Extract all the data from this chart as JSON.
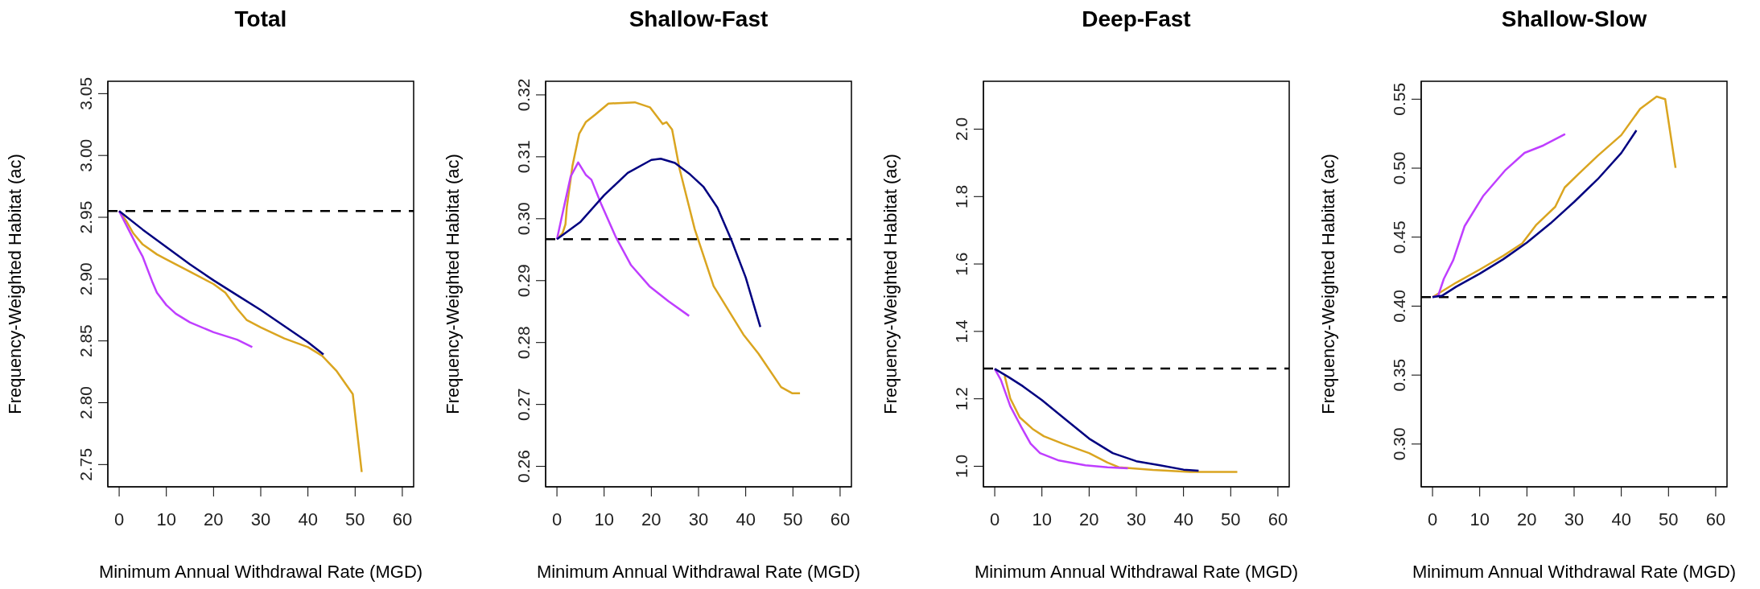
{
  "chart_data": [
    {
      "type": "line",
      "title": "Total",
      "xlabel": "Minimum Annual Withdrawal Rate (MGD)",
      "ylabel": "Frequency-Weighted Habitat (ac)",
      "xlim": [
        -2.4,
        62.4
      ],
      "xticks": [
        0,
        10,
        20,
        30,
        40,
        50,
        60
      ],
      "ylim": [
        2.732,
        3.06
      ],
      "yticks": [
        2.75,
        {
          "value": 2.8,
          "label": "2.80"
        },
        2.85,
        {
          "value": 2.9,
          "label": "2.90"
        },
        2.95,
        {
          "value": 3,
          "label": "3.00"
        },
        3.05
      ],
      "ref_lines": [
        {
          "axis": "y",
          "value": 2.955,
          "color": "#000000",
          "line_style": "dashed"
        }
      ],
      "series": [
        {
          "color": "#daa520",
          "x": [
            0,
            1.5,
            3,
            5,
            8,
            10,
            15,
            20,
            22.5,
            25,
            27,
            30,
            35,
            40,
            43,
            46,
            49.5,
            51.4
          ],
          "values": [
            2.955,
            2.947,
            2.937,
            2.928,
            2.92,
            2.916,
            2.906,
            2.896,
            2.889,
            2.876,
            2.867,
            2.861,
            2.852,
            2.845,
            2.838,
            2.826,
            2.807,
            2.744
          ]
        },
        {
          "color": "#bf3eff",
          "x": [
            0,
            2,
            4,
            5,
            7,
            8,
            10,
            12,
            15,
            20,
            25,
            28.2
          ],
          "values": [
            2.955,
            2.94,
            2.925,
            2.918,
            2.898,
            2.889,
            2.879,
            2.872,
            2.865,
            2.857,
            2.851,
            2.845
          ]
        },
        {
          "color": "#000080",
          "x": [
            0,
            5,
            10,
            15,
            20,
            25,
            30,
            35,
            40,
            43.3
          ],
          "values": [
            2.955,
            2.94,
            2.926,
            2.912,
            2.899,
            2.887,
            2.875,
            2.862,
            2.849,
            2.839
          ]
        }
      ]
    },
    {
      "type": "line",
      "title": "Shallow-Fast",
      "xlabel": "Minimum Annual Withdrawal Rate (MGD)",
      "ylabel": "Frequency-Weighted Habitat (ac)",
      "xlim": [
        -2.4,
        62.4
      ],
      "xticks": [
        0,
        10,
        20,
        30,
        40,
        50,
        60
      ],
      "ylim": [
        0.2567,
        0.3222
      ],
      "yticks": [
        0.26,
        0.27,
        0.28,
        0.29,
        {
          "value": 0.3,
          "label": "0.30"
        },
        0.31,
        0.32
      ],
      "ref_lines": [
        {
          "axis": "y",
          "value": 0.2967,
          "color": "#000000",
          "line_style": "dashed"
        }
      ],
      "series": [
        {
          "color": "#daa520",
          "x": [
            0,
            1.2,
            1.8,
            2.1,
            3.3,
            4.7,
            6.1,
            8.1,
            10.9,
            16.5,
            19.7,
            22.4,
            23.2,
            24.4,
            26,
            29.2,
            33.2,
            39.5,
            42.7,
            47.5,
            49.9,
            51.5
          ],
          "values": [
            0.2967,
            0.2977,
            0.2991,
            0.3019,
            0.3086,
            0.3137,
            0.3156,
            0.3168,
            0.3186,
            0.3188,
            0.318,
            0.3153,
            0.3156,
            0.3144,
            0.308,
            0.2983,
            0.2891,
            0.2813,
            0.2782,
            0.2728,
            0.2718,
            0.2718
          ]
        },
        {
          "color": "#bf3eff",
          "x": [
            0,
            1.4,
            2.9,
            4.5,
            6.1,
            7.3,
            9.3,
            12.5,
            15.7,
            19.6,
            23.6,
            28
          ],
          "values": [
            0.2967,
            0.3016,
            0.3068,
            0.3091,
            0.3071,
            0.3063,
            0.3025,
            0.297,
            0.2925,
            0.2891,
            0.2867,
            0.2843
          ]
        },
        {
          "color": "#000080",
          "x": [
            0,
            5,
            10,
            15,
            20,
            22,
            25,
            28,
            31,
            34,
            37,
            40,
            43.1
          ],
          "values": [
            0.2967,
            0.2995,
            0.3038,
            0.3074,
            0.3095,
            0.3097,
            0.309,
            0.3073,
            0.3052,
            0.3018,
            0.2965,
            0.2905,
            0.2825
          ]
        }
      ]
    },
    {
      "type": "line",
      "title": "Deep-Fast",
      "xlabel": "Minimum Annual Withdrawal Rate (MGD)",
      "ylabel": "Frequency-Weighted Habitat (ac)",
      "xlim": [
        -2.4,
        62.4
      ],
      "xticks": [
        0,
        10,
        20,
        30,
        40,
        50,
        60
      ],
      "ylim": [
        0.939,
        2.142
      ],
      "yticks": [
        {
          "value": 1,
          "label": "1.0"
        },
        1.2,
        1.4,
        1.6,
        1.8,
        {
          "value": 2,
          "label": "2.0"
        }
      ],
      "ref_lines": [
        {
          "axis": "y",
          "value": 1.29,
          "color": "#000000",
          "line_style": "dashed"
        }
      ],
      "series": [
        {
          "color": "#daa520",
          "x": [
            2.1,
            3.3,
            5.3,
            8,
            10.4,
            14.4,
            20,
            23.9,
            26.3,
            33.5,
            41.4,
            51.4
          ],
          "values": [
            1.268,
            1.201,
            1.145,
            1.111,
            1.089,
            1.067,
            1.039,
            1.011,
            0.997,
            0.989,
            0.983,
            0.983
          ]
        },
        {
          "color": "#bf3eff",
          "x": [
            0,
            1.3,
            3.3,
            5.6,
            7.6,
            9.6,
            13.6,
            19.2,
            23.9,
            28.2
          ],
          "values": [
            1.289,
            1.256,
            1.178,
            1.117,
            1.067,
            1.039,
            1.017,
            1.003,
            0.997,
            0.994
          ]
        },
        {
          "color": "#000080",
          "x": [
            0,
            3,
            6,
            10,
            15,
            20,
            25,
            30,
            35,
            40,
            43.2
          ],
          "values": [
            1.289,
            1.264,
            1.237,
            1.196,
            1.139,
            1.082,
            1.039,
            1.015,
            1.003,
            0.99,
            0.987
          ]
        }
      ]
    },
    {
      "type": "line",
      "title": "Shallow-Slow",
      "xlabel": "Minimum Annual Withdrawal Rate (MGD)",
      "ylabel": "Frequency-Weighted Habitat (ac)",
      "xlim": [
        -2.4,
        62.4
      ],
      "xticks": [
        0,
        10,
        20,
        30,
        40,
        50,
        60
      ],
      "ylim": [
        0.269,
        0.563
      ],
      "yticks": [
        {
          "value": 0.3,
          "label": "0.30"
        },
        0.35,
        {
          "value": 0.4,
          "label": "0.40"
        },
        0.45,
        {
          "value": 0.5,
          "label": "0.50"
        },
        0.55
      ],
      "ref_lines": [
        {
          "axis": "y",
          "value": 0.4065,
          "color": "#000000",
          "line_style": "dashed"
        }
      ],
      "series": [
        {
          "color": "#daa520",
          "x": [
            0,
            5,
            10,
            15,
            19,
            22,
            26,
            28,
            31,
            35,
            40,
            44,
            47.5,
            49.3,
            51.5
          ],
          "values": [
            0.4065,
            0.417,
            0.4265,
            0.4365,
            0.4455,
            0.459,
            0.472,
            0.486,
            0.496,
            0.509,
            0.524,
            0.543,
            0.5519,
            0.55,
            0.5002
          ]
        },
        {
          "color": "#bf3eff",
          "x": [
            0,
            1.2,
            2.4,
            4.4,
            6.8,
            10.7,
            15.5,
            19.5,
            23.5,
            28.1
          ],
          "values": [
            0.4065,
            0.4076,
            0.4198,
            0.4334,
            0.458,
            0.4797,
            0.4988,
            0.5111,
            0.5165,
            0.5247
          ]
        },
        {
          "color": "#000080",
          "x": [
            0,
            2,
            5,
            10,
            15,
            20,
            25,
            30,
            35,
            40,
            43.2
          ],
          "values": [
            0.4065,
            0.4075,
            0.414,
            0.4235,
            0.434,
            0.446,
            0.46,
            0.4755,
            0.492,
            0.511,
            0.5274
          ]
        }
      ]
    }
  ]
}
